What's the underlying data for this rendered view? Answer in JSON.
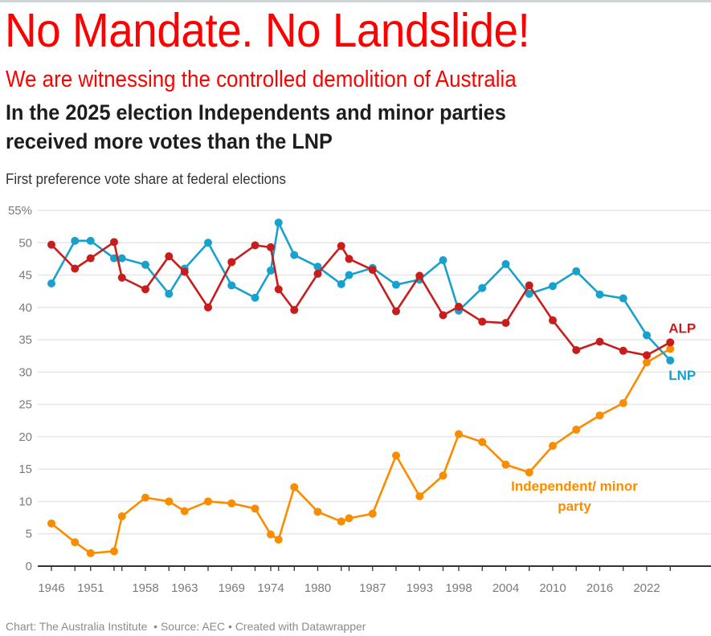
{
  "headline": "No Mandate. No Landslide!",
  "subheadline": "We are witnessing the controlled demolition of Australia",
  "footer": {
    "chart_credit": "Chart: The Australia Institute",
    "source": "Source: AEC",
    "created_with": "Created with Datawrapper",
    "separator": "•"
  },
  "chart_data": {
    "type": "line",
    "title": "In the 2025 election Independents and minor parties received more votes than the LNP",
    "title_lines": [
      "In the 2025 election Independents and minor parties",
      "received more votes than the LNP"
    ],
    "subtitle": "First preference vote share at federal elections",
    "xlabel": "",
    "ylabel": "",
    "ylim": [
      0,
      55
    ],
    "yticks": [
      0,
      5,
      10,
      15,
      20,
      25,
      30,
      35,
      40,
      45,
      50,
      55
    ],
    "ytick_labels": [
      "0",
      "5",
      "10",
      "15",
      "20",
      "25",
      "30",
      "35",
      "40",
      "45",
      "50",
      "55%"
    ],
    "xlim": [
      1944,
      2029
    ],
    "x": [
      1946,
      1949,
      1951,
      1954,
      1955,
      1958,
      1961,
      1963,
      1966,
      1969,
      1972,
      1974,
      1975,
      1977,
      1980,
      1983,
      1984,
      1987,
      1990,
      1993,
      1996,
      1998,
      2001,
      2004,
      2007,
      2010,
      2013,
      2016,
      2019,
      2022,
      2025
    ],
    "xtick_labels": [
      "1946",
      "1951",
      "1958",
      "1963",
      "1969",
      "1974",
      "1980",
      "1987",
      "1993",
      "1998",
      "2004",
      "2010",
      "2016",
      "2022"
    ],
    "grid": true,
    "legend": "direct-labels-right",
    "series": [
      {
        "name": "LNP",
        "label": "LNP",
        "color": "#18a1cd",
        "values": [
          43.7,
          50.3,
          50.3,
          47.6,
          47.6,
          46.6,
          42.1,
          46.0,
          50.0,
          43.4,
          41.5,
          45.7,
          53.1,
          48.1,
          46.3,
          43.6,
          45.0,
          46.1,
          43.5,
          44.3,
          47.3,
          39.5,
          43.0,
          46.7,
          42.1,
          43.3,
          45.6,
          42.0,
          41.4,
          35.7,
          31.8
        ]
      },
      {
        "name": "ALP",
        "label": "ALP",
        "color": "#c71e1d",
        "values": [
          49.7,
          46.0,
          47.6,
          50.1,
          44.6,
          42.8,
          47.9,
          45.5,
          40.0,
          47.0,
          49.6,
          49.3,
          42.8,
          39.6,
          45.2,
          49.5,
          47.5,
          45.8,
          39.4,
          44.9,
          38.8,
          40.1,
          37.8,
          37.6,
          43.4,
          38.0,
          33.4,
          34.7,
          33.3,
          32.6,
          34.6
        ]
      },
      {
        "name": "Independent/ minor party",
        "label_lines": [
          "Independent/ minor",
          "party"
        ],
        "color": "#fa8c00",
        "values": [
          6.6,
          3.7,
          2.0,
          2.3,
          7.7,
          10.6,
          10.0,
          8.5,
          10.0,
          9.7,
          8.9,
          4.9,
          4.1,
          12.2,
          8.4,
          6.9,
          7.4,
          8.1,
          17.1,
          10.8,
          14.0,
          20.4,
          19.2,
          15.7,
          14.5,
          18.6,
          21.1,
          23.3,
          25.2,
          31.5,
          33.6
        ]
      }
    ]
  }
}
